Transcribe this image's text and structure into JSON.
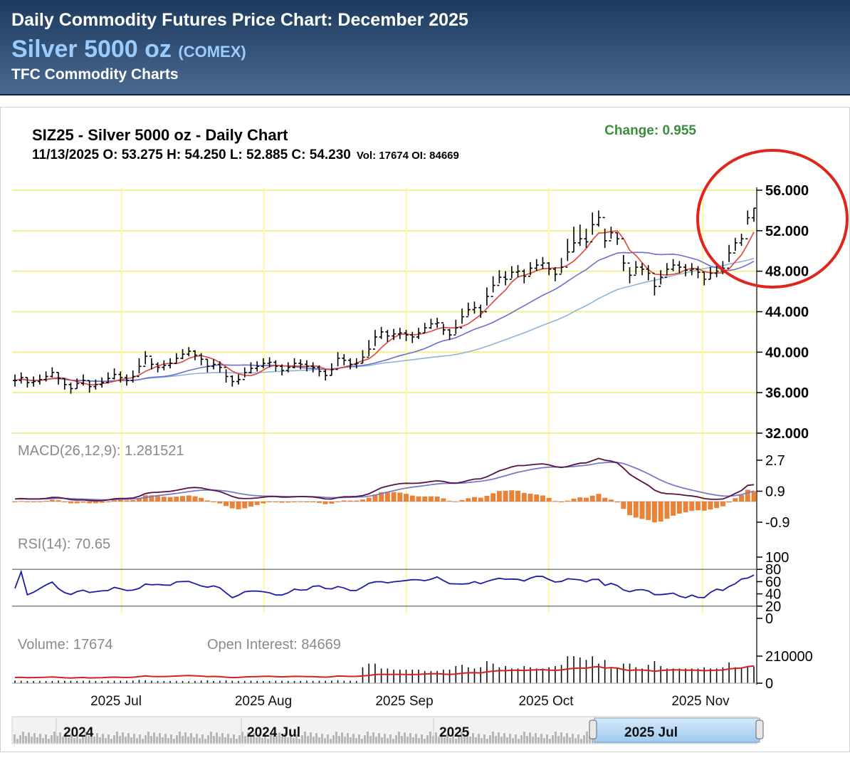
{
  "header": {
    "title": "Daily Commodity Futures Price Chart: December 2025",
    "name": "Silver 5000 oz",
    "exchange": "(COMEX)",
    "subtitle": "TFC Commodity Charts"
  },
  "colors": {
    "ma_fast": "#e0443c",
    "ma_mid": "#6a6ed0",
    "ma_slow": "#8fb3dc",
    "macd_line": "#5a1044",
    "macd_signal": "#7a7acd",
    "macd_hist": "#e8843a",
    "rsi_line": "#1c1ca8",
    "volume_bar": "#111111",
    "oi_line": "#d62020",
    "grid": "#f3ef8c",
    "month_line": "#fff7a0",
    "annotation_circle": "#e0251c"
  },
  "chart_data": {
    "type": "line",
    "title": "SIZ25 - Silver 5000 oz - Daily Chart",
    "ohlc_main": "11/13/2025 O: 53.275 H: 54.250 L: 52.885 C: 54.230",
    "ohlc_extra": "Vol: 17674 OI: 84669",
    "change": "Change: 0.955",
    "x_labels": [
      "2025 Jul",
      "2025 Aug",
      "2025 Sep",
      "2025 Oct",
      "2025 Nov"
    ],
    "price_panel": {
      "y_ticks": [
        "56.000",
        "52.000",
        "48.000",
        "44.000",
        "40.000",
        "36.000",
        "32.000"
      ],
      "ylim": [
        32,
        56
      ],
      "close": [
        37.2,
        37.5,
        37.0,
        37.1,
        37.3,
        37.6,
        38.0,
        37.4,
        36.8,
        36.4,
        36.9,
        37.2,
        36.6,
        36.8,
        37.0,
        37.4,
        37.8,
        37.5,
        37.2,
        37.6,
        38.6,
        39.6,
        38.8,
        38.5,
        38.7,
        38.9,
        39.4,
        39.8,
        40.1,
        39.7,
        39.3,
        38.6,
        38.8,
        38.5,
        37.6,
        37.1,
        37.3,
        38.0,
        38.4,
        38.6,
        38.9,
        39.0,
        38.6,
        38.2,
        38.5,
        38.9,
        38.8,
        38.6,
        38.5,
        38.1,
        37.7,
        38.3,
        39.4,
        39.2,
        38.8,
        38.9,
        39.5,
        40.3,
        41.5,
        42.0,
        41.6,
        41.8,
        41.9,
        41.7,
        41.5,
        41.9,
        42.4,
        42.8,
        42.9,
        42.2,
        41.7,
        42.4,
        43.5,
        44.2,
        44.4,
        44.0,
        45.5,
        46.6,
        47.4,
        47.2,
        47.9,
        48.0,
        47.5,
        48.3,
        48.6,
        48.8,
        48.2,
        47.7,
        48.4,
        49.9,
        50.8,
        51.2,
        50.9,
        52.6,
        53.3,
        51.0,
        51.8,
        51.2,
        48.8,
        47.6,
        48.4,
        48.2,
        47.8,
        46.5,
        47.4,
        48.2,
        48.6,
        48.4,
        48.1,
        48.2,
        47.9,
        47.2,
        47.8,
        48.0,
        48.3,
        49.8,
        50.8,
        51.2,
        53.28,
        54.23
      ],
      "high": [
        37.8,
        38.0,
        37.5,
        37.6,
        37.8,
        38.1,
        38.5,
        38.0,
        37.4,
        37.0,
        37.4,
        37.8,
        37.2,
        37.3,
        37.5,
        38.0,
        38.4,
        38.1,
        37.8,
        38.2,
        39.4,
        40.1,
        39.4,
        39.0,
        39.2,
        39.4,
        39.9,
        40.3,
        40.5,
        40.2,
        39.9,
        39.3,
        39.3,
        39.1,
        38.3,
        37.7,
        37.8,
        38.5,
        39.0,
        39.1,
        39.4,
        39.5,
        39.2,
        38.8,
        39.0,
        39.4,
        39.3,
        39.2,
        39.0,
        38.7,
        38.3,
        38.9,
        40.0,
        39.8,
        39.4,
        39.4,
        40.2,
        41.2,
        42.2,
        42.5,
        42.2,
        42.3,
        42.4,
        42.2,
        42.0,
        42.4,
        42.9,
        43.3,
        43.4,
        42.8,
        42.3,
        43.2,
        44.3,
        44.9,
        45.0,
        44.7,
        46.4,
        47.5,
        48.1,
        48.0,
        48.5,
        48.6,
        48.2,
        48.9,
        49.2,
        49.4,
        48.9,
        48.4,
        49.3,
        51.2,
        52.4,
        52.6,
        52.2,
        53.8,
        54.0,
        52.2,
        52.4,
        51.8,
        49.6,
        48.4,
        49.0,
        48.8,
        48.6,
        47.4,
        48.1,
        48.8,
        49.2,
        49.0,
        48.7,
        48.8,
        48.5,
        47.9,
        48.4,
        48.6,
        49.0,
        50.6,
        51.3,
        51.7,
        54.0,
        54.25
      ],
      "low": [
        36.6,
        36.9,
        36.5,
        36.6,
        36.8,
        37.1,
        37.5,
        36.8,
        36.3,
        35.9,
        36.4,
        36.7,
        36.0,
        36.3,
        36.5,
        36.9,
        37.3,
        37.0,
        36.7,
        37.0,
        37.9,
        38.8,
        38.3,
        38.0,
        38.2,
        38.4,
        38.9,
        39.3,
        39.6,
        39.2,
        38.7,
        38.0,
        38.3,
        38.0,
        37.0,
        36.6,
        36.8,
        37.5,
        37.9,
        38.1,
        38.4,
        38.5,
        38.1,
        37.7,
        38.0,
        38.4,
        38.3,
        38.1,
        38.0,
        37.6,
        37.2,
        37.7,
        38.6,
        38.7,
        38.3,
        38.4,
        38.9,
        39.6,
        40.6,
        41.3,
        41.0,
        41.2,
        41.3,
        41.1,
        40.9,
        41.3,
        41.9,
        42.3,
        42.4,
        41.7,
        41.2,
        41.8,
        42.8,
        43.6,
        43.8,
        43.4,
        44.6,
        45.9,
        46.8,
        46.6,
        47.3,
        47.4,
        46.8,
        47.6,
        48.0,
        48.2,
        47.6,
        47.0,
        47.8,
        49.0,
        49.9,
        50.5,
        50.3,
        51.6,
        52.4,
        50.3,
        51.2,
        50.6,
        48.0,
        46.8,
        47.7,
        47.6,
        47.1,
        45.6,
        46.7,
        47.6,
        48.0,
        47.8,
        47.5,
        47.6,
        47.3,
        46.6,
        47.2,
        47.4,
        47.7,
        48.9,
        50.0,
        50.5,
        52.6,
        52.885
      ]
    },
    "macd_panel": {
      "label": "MACD(26,12,9): 1.281521",
      "y_ticks": [
        "2.7",
        "0.9",
        "-0.9"
      ],
      "ylim": [
        -0.9,
        2.7
      ],
      "macd_last": 1.281521
    },
    "rsi_panel": {
      "label": "RSI(14): 70.65",
      "y_ticks": [
        "100",
        "80",
        "60",
        "40",
        "20",
        "0"
      ],
      "ylim": [
        0,
        100
      ],
      "reference_lines": [
        80,
        20
      ],
      "rsi_last": 70.65
    },
    "volume_panel": {
      "volume_label": "Volume: 17674",
      "oi_label": "Open Interest: 84669",
      "y_ticks": [
        "210000",
        "0"
      ],
      "ylim": [
        0,
        210000
      ]
    }
  },
  "navigator": {
    "labels": [
      "2024",
      "2024 Jul",
      "2025",
      "2025 Jul"
    ]
  }
}
